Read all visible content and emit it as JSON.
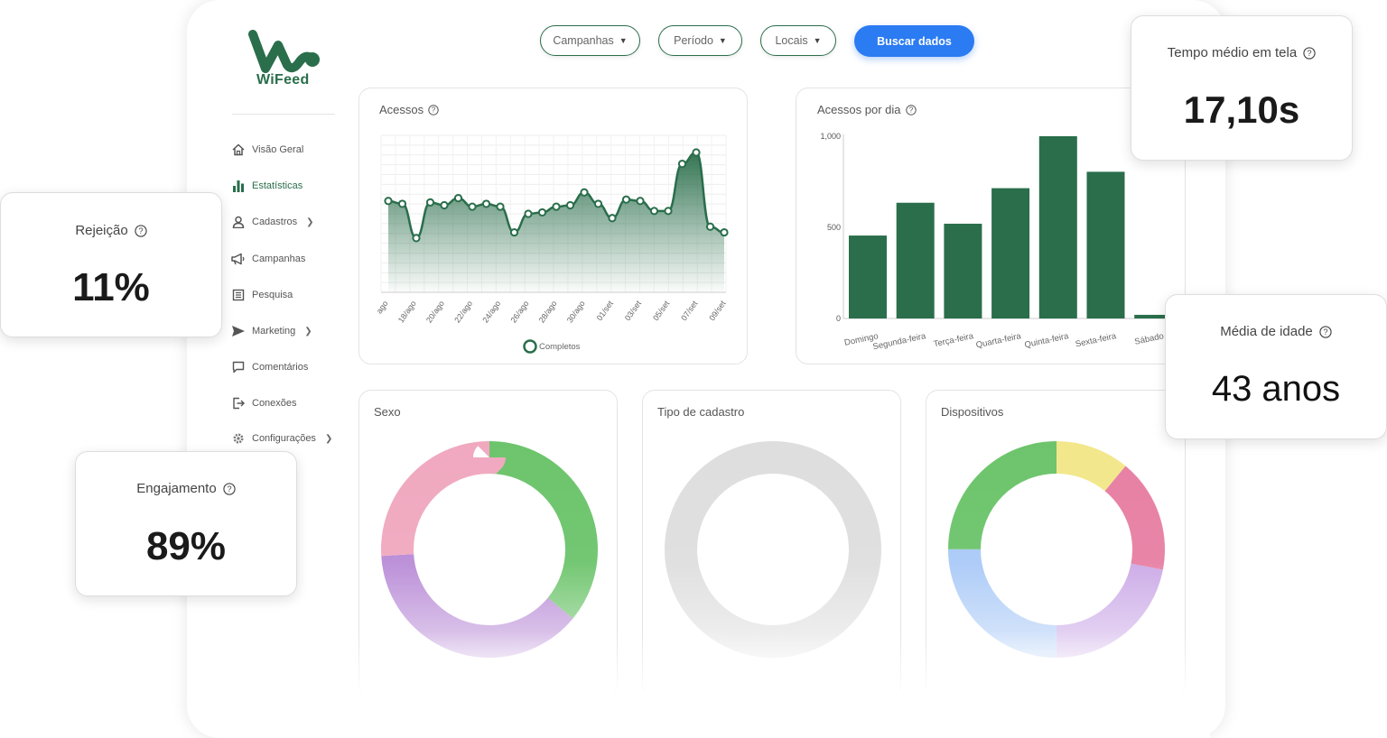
{
  "brand": {
    "name": "WiFeed",
    "color": "#2a6e4b"
  },
  "sidebar": {
    "items": [
      {
        "label": "Visão Geral",
        "icon": "home-icon",
        "has_submenu": false,
        "active": false
      },
      {
        "label": "Estatísticas",
        "icon": "bar-chart-icon",
        "has_submenu": false,
        "active": true
      },
      {
        "label": "Cadastros",
        "icon": "user-icon",
        "has_submenu": true,
        "active": false
      },
      {
        "label": "Campanhas",
        "icon": "megaphone-icon",
        "has_submenu": false,
        "active": false
      },
      {
        "label": "Pesquisa",
        "icon": "form-icon",
        "has_submenu": false,
        "active": false
      },
      {
        "label": "Marketing",
        "icon": "send-icon",
        "has_submenu": true,
        "active": false
      },
      {
        "label": "Comentários",
        "icon": "comment-icon",
        "has_submenu": false,
        "active": false
      },
      {
        "label": "Conexões",
        "icon": "logout-icon",
        "has_submenu": false,
        "active": false
      },
      {
        "label": "Configurações",
        "icon": "gear-icon",
        "has_submenu": true,
        "active": false
      }
    ]
  },
  "filters": {
    "campanhas": "Campanhas",
    "periodo": "Período",
    "locais": "Locais",
    "buscar": "Buscar dados"
  },
  "cards": {
    "acessos": {
      "title": "Acessos",
      "legend": "Completos"
    },
    "acessos_dia": {
      "title": "Acessos por dia"
    },
    "sexo": {
      "title": "Sexo"
    },
    "tipo_cadastro": {
      "title": "Tipo de cadastro"
    },
    "dispositivos": {
      "title": "Dispositivos"
    }
  },
  "metrics": {
    "tempo": {
      "label": "Tempo médio em tela",
      "value": "17,10s"
    },
    "rejeicao": {
      "label": "Rejeição",
      "value": "11%"
    },
    "idade": {
      "label": "Média de idade",
      "value": "43 anos"
    },
    "engajamento": {
      "label": "Engajamento",
      "value": "89%"
    }
  },
  "chart_data": [
    {
      "type": "area",
      "title": "Acessos",
      "series_name": "Completos",
      "color": "#2a6e4b",
      "x_tick_labels": [
        "ago",
        "18/ago",
        "20/ago",
        "22/ago",
        "24/ago",
        "26/ago",
        "28/ago",
        "30/ago",
        "01/set",
        "03/set",
        "05/set",
        "07/set",
        "09/set"
      ],
      "values": [
        64,
        62,
        38,
        63,
        61,
        66,
        60,
        62,
        60,
        42,
        55,
        56,
        60,
        61,
        70,
        62,
        52,
        65,
        64,
        57,
        57,
        90,
        98,
        46,
        42
      ],
      "ylim": [
        0,
        110
      ],
      "grid": true
    },
    {
      "type": "bar",
      "title": "Acessos por dia",
      "color": "#2a6e4b",
      "categories": [
        "Domingo",
        "Segunda-feira",
        "Terça-feira",
        "Quarta-feira",
        "Quinta-feira",
        "Sexta-feira",
        "Sábado"
      ],
      "values": [
        455,
        635,
        520,
        715,
        1000,
        805,
        20
      ],
      "y_tick_labels": [
        "0",
        "500",
        "1,000"
      ],
      "ylim": [
        0,
        1000
      ]
    },
    {
      "type": "pie",
      "title": "Sexo",
      "donut": true,
      "slices": [
        {
          "value": 36,
          "color": "#6cc46b"
        },
        {
          "value": 38,
          "color": "#b88bd6"
        },
        {
          "value": 26,
          "color": "#f0a8bf"
        }
      ]
    },
    {
      "type": "pie",
      "title": "Tipo de cadastro",
      "donut": true,
      "slices": [
        {
          "value": 100,
          "color": "#dedede"
        }
      ]
    },
    {
      "type": "pie",
      "title": "Dispositivos",
      "donut": true,
      "slices": [
        {
          "value": 11,
          "color": "#f2e78a"
        },
        {
          "value": 17,
          "color": "#e77fa3"
        },
        {
          "value": 22,
          "color": "#caa8e6"
        },
        {
          "value": 25,
          "color": "#a9c9f7"
        },
        {
          "value": 25,
          "color": "#6cc46b"
        }
      ]
    }
  ]
}
